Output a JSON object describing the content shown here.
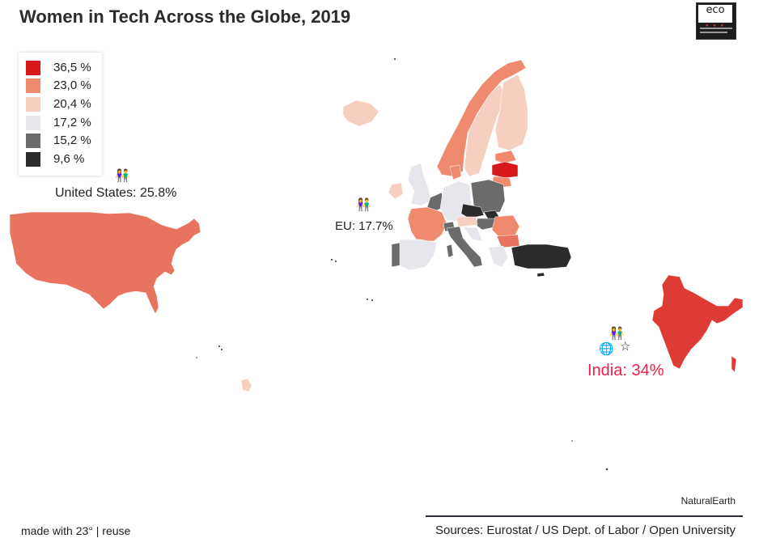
{
  "title": "Women in Tech Across the Globe, 2019",
  "logo": {
    "text": "eco"
  },
  "legend": {
    "items": [
      {
        "label": "36,5 %",
        "color": "#d7191c"
      },
      {
        "label": "23,0 %",
        "color": "#f08a6e"
      },
      {
        "label": "20,4 %",
        "color": "#f7cfc0"
      },
      {
        "label": "17,2 %",
        "color": "#e6e7ec"
      },
      {
        "label": "15,2 %",
        "color": "#6b6b6b"
      },
      {
        "label": "9,6 %",
        "color": "#2b2b2b"
      }
    ]
  },
  "regions": {
    "us": {
      "label": "United States: 25.8%",
      "color": "#e8735f",
      "icon": "people-icon"
    },
    "eu": {
      "label": "EU: 17.7%",
      "icon": "people-icon"
    },
    "india": {
      "label": "India: 34%",
      "color": "#dd3b33",
      "label_color": "#e8224a",
      "icons": [
        "people-icon",
        "globe-icon",
        "star-icon"
      ]
    }
  },
  "footer": {
    "credit": "NaturalEarth",
    "sources": "Sources: Eurostat / US Dept. of Labor / Open University",
    "made_with": "made with 23° | reuse",
    "made_with_prefix": "made with 23°",
    "separator": " | ",
    "reuse_link": "reuse"
  }
}
